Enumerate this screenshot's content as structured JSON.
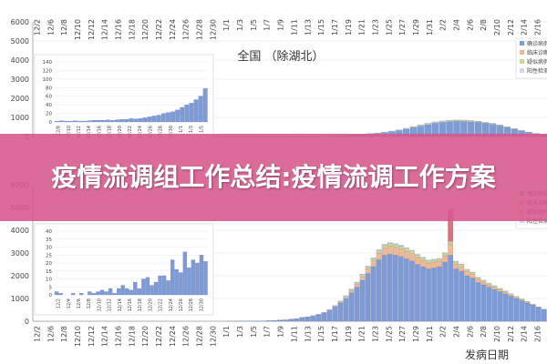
{
  "page": {
    "banner_title": "疫情流调组工作总结:疫情流调工作方案"
  },
  "colors": {
    "confirmed": "#7f9bd6",
    "clinical": "#f2b990",
    "suspected": "#c9d893",
    "asymptomatic": "#dcd3ea",
    "hubei_red": "#d9747f",
    "axis": "#999999",
    "grid": "#e4e4e4",
    "text": "#444444"
  },
  "chart_data": [
    {
      "type": "bar",
      "title": "全国 （除湖北）",
      "xlabel": "",
      "ylabel": "",
      "ylim": [
        0,
        6000
      ],
      "yticks": [
        "0",
        "1000",
        "2000",
        "3000",
        "4000",
        "5000",
        "6000"
      ],
      "top_tick_labels": [
        "12/2",
        "12/6",
        "12/8",
        "12/10",
        "12/12",
        "12/14",
        "12/16",
        "12/18",
        "12/20",
        "12/22",
        "12/24",
        "12/26",
        "12/28",
        "12/30",
        "1/1",
        "1/3",
        "1/5",
        "1/7",
        "1/9",
        "1/11",
        "1/13",
        "1/15",
        "1/17",
        "1/19",
        "1/21",
        "1/23",
        "1/25",
        "1/27",
        "1/29",
        "1/31",
        "2/2",
        "2/4",
        "2/6",
        "2/8",
        "2/10",
        "2/12",
        "2/14",
        "2/16"
      ],
      "legend": [
        "确诊病例",
        "临床诊断",
        "疑似病例",
        "阳性检测"
      ],
      "legend_position": "top-right",
      "inset": {
        "ylim": [
          0,
          140
        ],
        "yticks": [
          "0",
          "20",
          "40",
          "60",
          "80",
          "100",
          "120",
          "140"
        ],
        "values": [
          2,
          3,
          2,
          2,
          3,
          2,
          2,
          3,
          4,
          4,
          4,
          5,
          4,
          5,
          6,
          6,
          8,
          7,
          8,
          10,
          12,
          14,
          16,
          20,
          22,
          24,
          28,
          34,
          40,
          44,
          52,
          60,
          78
        ],
        "tick_labels": [
          "12/8",
          "12/10",
          "12/12",
          "12/14",
          "12/16",
          "12/18",
          "12/20",
          "12/22",
          "12/24",
          "12/26",
          "12/28",
          "12/30",
          "1/1",
          "1/3",
          "1/5"
        ]
      },
      "series": [
        {
          "name": "确诊病例",
          "values": [
            5,
            6,
            8,
            10,
            12,
            14,
            18,
            22,
            30,
            45,
            60,
            80,
            100,
            130,
            160,
            200,
            250,
            310,
            380,
            460,
            540,
            620,
            690,
            740,
            780,
            800,
            790,
            770,
            740,
            700,
            640,
            560,
            470,
            380,
            290,
            210,
            150,
            100
          ]
        },
        {
          "name": "临床诊断",
          "values": [
            0,
            0,
            0,
            0,
            0,
            0,
            0,
            0,
            0,
            0,
            0,
            0,
            0,
            0,
            0,
            0,
            0,
            0,
            0,
            0,
            0,
            0,
            0,
            0,
            0,
            0,
            0,
            0,
            0,
            0,
            0,
            0,
            0,
            0,
            0,
            0,
            0,
            0
          ]
        },
        {
          "name": "疑似病例",
          "values": [
            0,
            0,
            0,
            0,
            0,
            1,
            1,
            2,
            3,
            4,
            6,
            8,
            10,
            13,
            16,
            20,
            25,
            30,
            36,
            42,
            48,
            52,
            54,
            55,
            55,
            54,
            52,
            50,
            46,
            42,
            38,
            33,
            28,
            22,
            18,
            14,
            10,
            7
          ]
        },
        {
          "name": "阳性检测",
          "values": [
            0,
            0,
            0,
            0,
            0,
            0,
            0,
            1,
            1,
            2,
            3,
            4,
            5,
            6,
            8,
            10,
            12,
            14,
            16,
            18,
            20,
            21,
            22,
            22,
            22,
            21,
            20,
            19,
            18,
            16,
            14,
            12,
            10,
            8,
            6,
            5,
            4,
            3
          ]
        }
      ]
    },
    {
      "type": "bar",
      "title": "",
      "xlabel": "发病日期",
      "ylabel": "",
      "ylim": [
        0,
        6000
      ],
      "yticks": [
        "0",
        "1000",
        "2000",
        "3000",
        "4000",
        "5000",
        "6000"
      ],
      "x_tick_labels": [
        "12/2",
        "12/6",
        "12/8",
        "12/10",
        "12/12",
        "12/14",
        "12/16",
        "12/18",
        "12/20",
        "12/22",
        "12/24",
        "12/26",
        "12/28",
        "12/30",
        "1/1",
        "1/3",
        "1/5",
        "1/7",
        "1/9",
        "1/11",
        "1/13",
        "1/15",
        "1/17",
        "1/19",
        "1/21",
        "1/23",
        "1/25",
        "1/27",
        "1/29",
        "1/31",
        "2/2",
        "2/4",
        "2/6",
        "2/8",
        "2/10",
        "2/12",
        "2/14",
        "2/16"
      ],
      "legend": [
        "确诊病例",
        "临床诊断",
        "疑似病例",
        "阳性检测"
      ],
      "legend_position": "top-right",
      "inset": {
        "ylim": [
          0,
          40
        ],
        "yticks": [
          "0",
          "5",
          "10",
          "15",
          "20",
          "25",
          "30",
          "35",
          "40"
        ],
        "values": [
          2,
          1,
          0,
          0,
          1,
          0,
          1,
          0,
          2,
          1,
          2,
          3,
          2,
          4,
          1,
          4,
          6,
          4,
          3,
          8,
          4,
          10,
          11,
          6,
          8,
          12,
          12,
          9,
          22,
          16,
          14,
          27,
          17,
          22,
          20,
          25,
          21
        ],
        "tick_labels": [
          "12/2",
          "12/4",
          "12/6",
          "12/8",
          "12/10",
          "12/12",
          "12/14",
          "12/16",
          "12/18",
          "12/20",
          "12/22",
          "12/24",
          "12/26",
          "12/28",
          "12/30"
        ]
      },
      "series": [
        {
          "name": "确诊病例",
          "values": [
            2,
            3,
            5,
            6,
            8,
            10,
            15,
            20,
            30,
            40,
            55,
            80,
            100,
            150,
            180,
            230,
            280,
            360,
            470,
            620,
            800,
            1000,
            1250,
            1500,
            1800,
            2100,
            2400,
            2700,
            2900,
            2950,
            2900,
            2850,
            2750,
            2650,
            2500,
            2400,
            2300,
            2350,
            2400,
            2600,
            2900,
            2300,
            2200,
            2000,
            1900,
            1700,
            1600,
            1500,
            1400,
            1300,
            1200,
            1100,
            1000,
            900,
            800,
            700,
            600,
            500
          ]
        },
        {
          "name": "临床诊断",
          "values": [
            0,
            0,
            0,
            0,
            0,
            0,
            0,
            0,
            0,
            0,
            0,
            0,
            0,
            0,
            0,
            0,
            0,
            0,
            10,
            20,
            30,
            50,
            80,
            120,
            160,
            200,
            250,
            300,
            330,
            350,
            350,
            340,
            330,
            320,
            300,
            280,
            260,
            250,
            240,
            280,
            500,
            220,
            200,
            180,
            160,
            140,
            120,
            100,
            90,
            80,
            70,
            60,
            50,
            40,
            30,
            20,
            15,
            10
          ]
        },
        {
          "name": "疑似病例",
          "values": [
            0,
            0,
            0,
            0,
            0,
            0,
            1,
            1,
            2,
            3,
            4,
            6,
            8,
            10,
            12,
            15,
            18,
            22,
            30,
            40,
            50,
            60,
            70,
            80,
            90,
            100,
            110,
            120,
            125,
            130,
            130,
            128,
            125,
            120,
            115,
            110,
            105,
            100,
            95,
            100,
            110,
            95,
            90,
            85,
            80,
            75,
            70,
            65,
            60,
            55,
            50,
            45,
            40,
            35,
            30,
            25,
            20,
            15
          ]
        },
        {
          "name": "阳性检测",
          "values": [
            0,
            0,
            0,
            0,
            0,
            0,
            0,
            1,
            1,
            1,
            2,
            2,
            3,
            4,
            5,
            6,
            8,
            10,
            12,
            14,
            16,
            18,
            20,
            22,
            24,
            26,
            28,
            30,
            32,
            33,
            34,
            34,
            33,
            32,
            31,
            30,
            29,
            28,
            27,
            30,
            1400,
            26,
            24,
            22,
            20,
            18,
            16,
            14,
            12,
            10,
            8,
            6,
            5,
            4,
            3,
            2,
            1,
            1
          ]
        }
      ]
    }
  ]
}
